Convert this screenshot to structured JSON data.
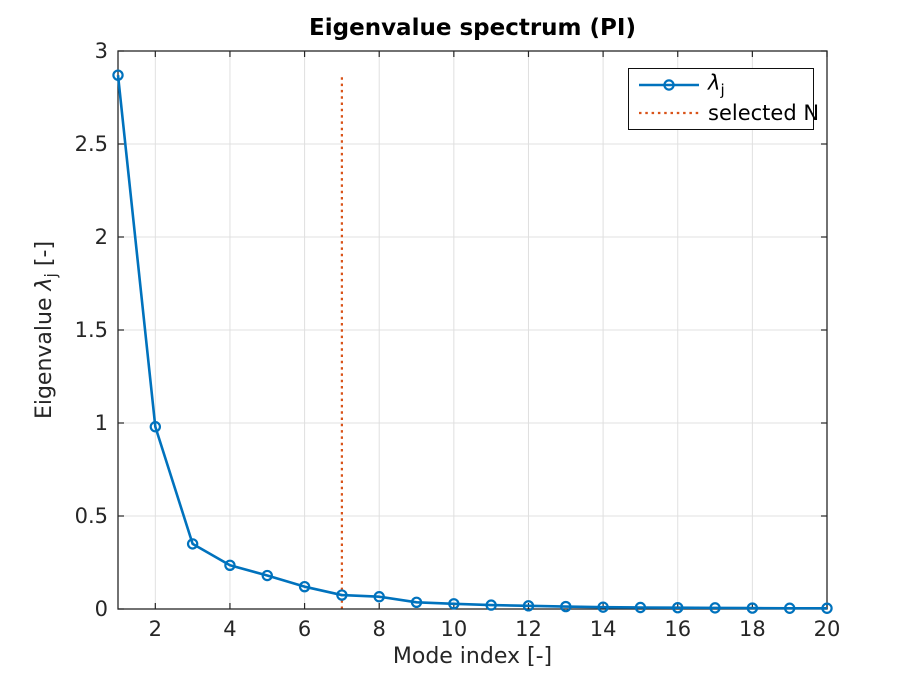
{
  "chart_data": {
    "type": "line",
    "title": "Eigenvalue spectrum (PI)",
    "xlabel": "Mode index [-]",
    "ylabel": "Eigenvalue λ_j [-]",
    "ylabel_parts": {
      "prefix": "Eigenvalue ",
      "symbol": "λ",
      "subscript": "j",
      "suffix": " [-]"
    },
    "x": [
      1,
      2,
      3,
      4,
      5,
      6,
      7,
      8,
      9,
      10,
      11,
      12,
      13,
      14,
      15,
      16,
      17,
      18,
      19,
      20
    ],
    "series": [
      {
        "name": "lambda_j",
        "color": "#0072BD",
        "marker": "circle",
        "line_style": "solid",
        "values": [
          2.87,
          0.98,
          0.35,
          0.235,
          0.18,
          0.12,
          0.075,
          0.066,
          0.036,
          0.028,
          0.021,
          0.017,
          0.013,
          0.01,
          0.008,
          0.007,
          0.006,
          0.005,
          0.004,
          0.004
        ]
      }
    ],
    "vline": {
      "x": 7,
      "y0": 0,
      "y1": 2.87,
      "label": "selected N",
      "style": "dotted",
      "color": "#D95319"
    },
    "xlim": [
      1,
      20
    ],
    "ylim": [
      0,
      3
    ],
    "xticks": [
      2,
      4,
      6,
      8,
      10,
      12,
      14,
      16,
      18,
      20
    ],
    "yticks": [
      0,
      0.5,
      1,
      1.5,
      2,
      2.5,
      3
    ],
    "grid": true,
    "legend": {
      "position": "top-right",
      "entries": [
        {
          "symbol": "λ",
          "subscript": "j",
          "line": "solid-with-circle-marker",
          "color": "#0072BD"
        },
        {
          "label": "selected N",
          "line": "dotted",
          "color": "#D95319"
        }
      ]
    },
    "colors": {
      "line": "#0072BD",
      "vline": "#D95319",
      "grid": "#e0e0e0",
      "axis": "#262626",
      "text": "#262626",
      "title": "#000000",
      "background": "#ffffff"
    }
  }
}
